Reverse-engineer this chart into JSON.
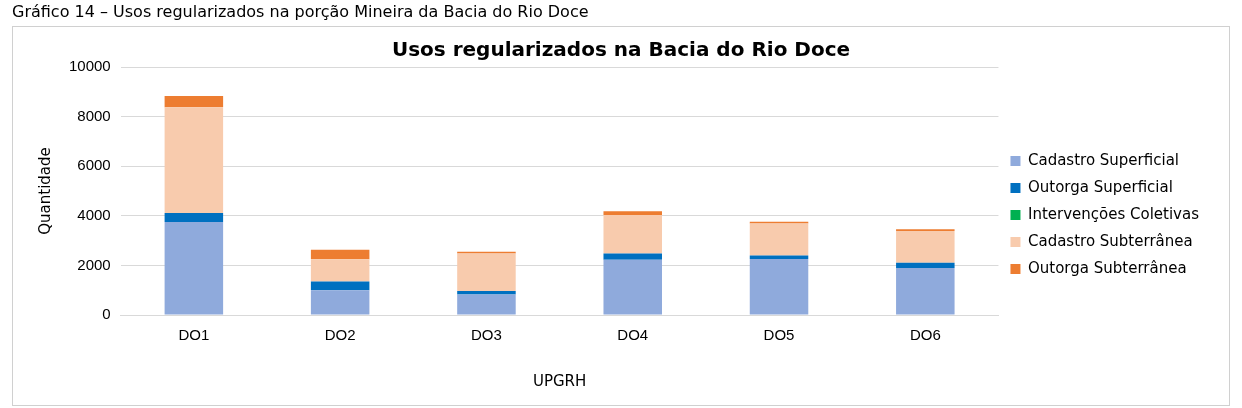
{
  "chart_data": {
    "type": "bar",
    "title": "Usos regularizados na Bacia do Rio Doce",
    "xlabel": "UPGRH",
    "ylabel": "Quantidade",
    "annotations": [
      "Gráfico 14 – Usos regularizados na porção Mineira da Bacia do Rio Doce"
    ],
    "categories": [
      "DO1",
      "DO2",
      "DO3",
      "DO4",
      "DO5",
      "DO6"
    ],
    "stacked": true,
    "series": [
      {
        "name": "Cadastro Superficial",
        "color": "#8faadc",
        "values": [
          3750,
          1000,
          830,
          2230,
          2260,
          1900
        ]
      },
      {
        "name": "Outorga Superficial",
        "color": "#0070c0",
        "values": [
          360,
          350,
          140,
          250,
          140,
          210
        ]
      },
      {
        "name": "Intervenções Coletivas",
        "color": "#00b050",
        "values": [
          0,
          0,
          0,
          0,
          0,
          0
        ]
      },
      {
        "name": "Cadastro Subterrânea",
        "color": "#f8cbad",
        "values": [
          4270,
          900,
          1510,
          1550,
          1290,
          1280
        ]
      },
      {
        "name": "Outorga Subterrânea",
        "color": "#ed7d31",
        "values": [
          450,
          380,
          70,
          150,
          70,
          70
        ]
      }
    ],
    "ylim": [
      0,
      10000
    ],
    "yticks": [
      0,
      2000,
      4000,
      6000,
      8000,
      10000
    ],
    "grid": "y",
    "legend": "right"
  }
}
